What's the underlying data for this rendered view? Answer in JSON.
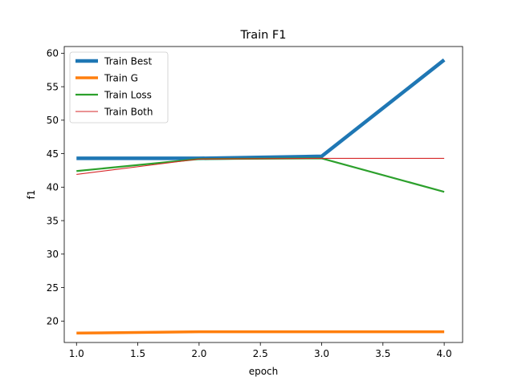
{
  "chart_data": {
    "type": "line",
    "title": "Train F1",
    "xlabel": "epoch",
    "ylabel": "f1",
    "x": [
      1.0,
      2.0,
      3.0,
      4.0
    ],
    "xlim": [
      0.9,
      4.15
    ],
    "ylim": [
      16.8,
      61.0
    ],
    "xticks": [
      "1.0",
      "1.5",
      "2.0",
      "2.5",
      "3.0",
      "3.5",
      "4.0"
    ],
    "yticks": [
      "20",
      "25",
      "30",
      "35",
      "40",
      "45",
      "50",
      "55",
      "60"
    ],
    "grid": false,
    "legend_position": "top-left",
    "series": [
      {
        "name": "Train Best",
        "color": "#1f77b4",
        "values": [
          44.3,
          44.3,
          44.6,
          59.0
        ]
      },
      {
        "name": "Train G",
        "color": "#ff7f0e",
        "values": [
          18.2,
          18.4,
          18.4,
          18.4
        ]
      },
      {
        "name": "Train Loss",
        "color": "#2ca02c",
        "values": [
          42.4,
          44.2,
          44.3,
          39.3
        ]
      },
      {
        "name": "Train Both",
        "color": "#d62728",
        "values": [
          41.9,
          44.2,
          44.3,
          44.3
        ]
      }
    ]
  }
}
